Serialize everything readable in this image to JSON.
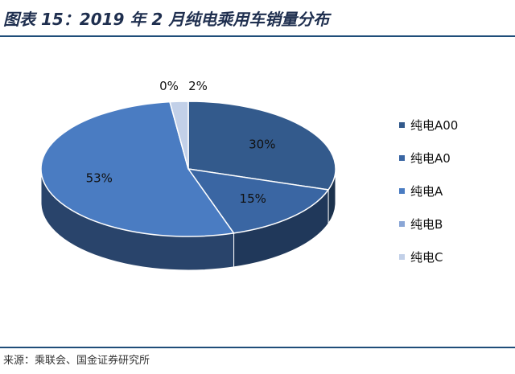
{
  "header": {
    "title": "图表 15：2019 年 2 月纯电乘用车销量分布"
  },
  "footer": {
    "source": "来源：乘联会、国金证券研究所"
  },
  "chart_data": {
    "type": "pie",
    "style": "3d-pie",
    "categories": [
      "纯电A00",
      "纯电A0",
      "纯电A",
      "纯电B",
      "纯电C"
    ],
    "values": [
      30,
      15,
      53,
      0,
      2
    ],
    "labels": [
      "30%",
      "15%",
      "53%",
      "0%",
      "2%"
    ],
    "colors": [
      "#335a8c",
      "#3a66a3",
      "#4a7cc2",
      "#8aa6d6",
      "#c2d0e8"
    ],
    "legend_position": "right"
  }
}
